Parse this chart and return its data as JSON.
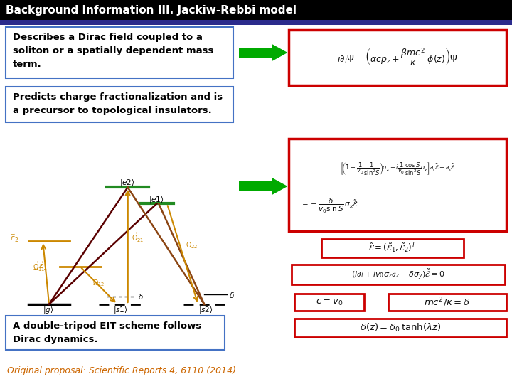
{
  "title": "Background Information III. Jackiw-Rebbi model",
  "title_bg": "#000000",
  "title_color": "#ffffff",
  "title_fontsize": 11,
  "header_bar_color": "#2b2b8c",
  "bg_color": "#ffffff",
  "box1_text": "Describes a Dirac field coupled to a\nsoliton or a spatially dependent mass\nterm.",
  "box2_text": "Predicts charge fractionalization and is\na precursor to topological insulators.",
  "box3_text": "A double-tripod EIT scheme follows\nDirac dynamics.",
  "box_border_color": "#4472c4",
  "box_bg_color": "#ffffff",
  "eq1": "$i\\partial_t\\Psi = \\left(\\alpha c p_z + \\dfrac{\\beta mc^2}{\\kappa}\\,\\phi(z)\\right)\\Psi$",
  "eq2a": "$\\left[\\!\\left(1+\\dfrac{1}{v_0}\\dfrac{1}{\\sin^2\\!S}\\right)\\!\\sigma_z - i\\dfrac{1}{v_0}\\dfrac{\\cos S}{\\sin^2\\!S}\\sigma_y\\right]\\partial_t\\tilde{\\mathcal{E}}+\\partial_z\\tilde{\\mathcal{E}}$",
  "eq2b": "$= -\\dfrac{\\delta}{v_0\\sin S}\\,\\sigma_x\\tilde{\\mathcal{E}}.$",
  "eq3": "$\\tilde{\\mathcal{E}}=(\\tilde{\\mathcal{E}}_1,\\tilde{\\mathcal{E}}_2)^T$",
  "eq4": "$(i\\partial_t + iv_0\\sigma_z\\partial_z - \\delta\\sigma_y)\\tilde{\\mathcal{E}}=0$",
  "eq5a": "$c = v_0$",
  "eq5b": "$mc^2/\\kappa = \\delta$",
  "eq6": "$\\delta(z) = \\delta_0\\,\\tanh(\\lambda z)$",
  "eq_box_color": "#cc0000",
  "arrow_color": "#00aa00",
  "citation": "Original proposal: Scientific Reports 4, 6110 (2014).",
  "citation_color": "#cc6600",
  "orange": "#cc8800",
  "darkred": "#5a0000",
  "brown": "#8B4513"
}
